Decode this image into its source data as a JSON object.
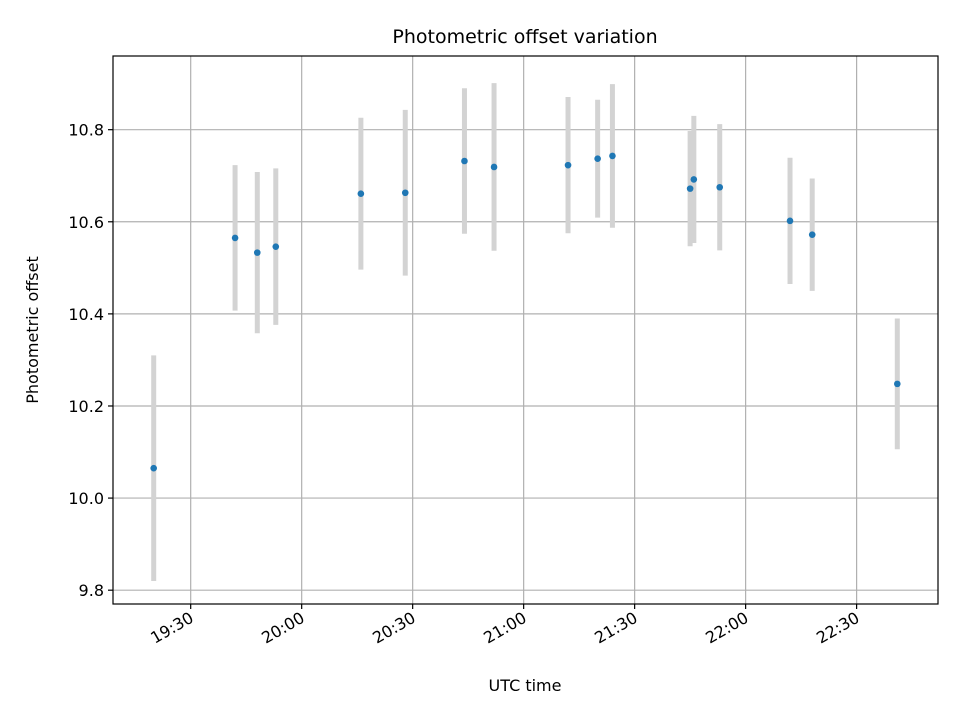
{
  "chart_data": {
    "type": "scatter",
    "title": "Photometric offset variation",
    "xlabel": "UTC time",
    "ylabel": "Photometric offset",
    "x_ticks": [
      "19:30",
      "20:00",
      "20:30",
      "21:00",
      "21:30",
      "22:00",
      "22:30"
    ],
    "y_ticks": [
      "9.8",
      "10.0",
      "10.2",
      "10.4",
      "10.6",
      "10.8"
    ],
    "xlim": [
      "19:09",
      "22:52"
    ],
    "ylim": [
      9.77,
      10.96
    ],
    "grid": true,
    "colors": {
      "point": "#1f77b4",
      "errorbar": "#d3d3d3",
      "grid": "#b0b0b0"
    },
    "series": [
      {
        "points": [
          {
            "x": "19:20",
            "y": 10.065,
            "err": 0.245
          },
          {
            "x": "19:42",
            "y": 10.565,
            "err": 0.158
          },
          {
            "x": "19:48",
            "y": 10.533,
            "err": 0.175
          },
          {
            "x": "19:53",
            "y": 10.546,
            "err": 0.17
          },
          {
            "x": "20:16",
            "y": 10.661,
            "err": 0.165
          },
          {
            "x": "20:28",
            "y": 10.663,
            "err": 0.18
          },
          {
            "x": "20:44",
            "y": 10.732,
            "err": 0.158
          },
          {
            "x": "20:52",
            "y": 10.719,
            "err": 0.182
          },
          {
            "x": "21:12",
            "y": 10.723,
            "err": 0.148
          },
          {
            "x": "21:20",
            "y": 10.737,
            "err": 0.128
          },
          {
            "x": "21:24",
            "y": 10.743,
            "err": 0.156
          },
          {
            "x": "21:45",
            "y": 10.672,
            "err": 0.125
          },
          {
            "x": "21:46",
            "y": 10.692,
            "err": 0.138
          },
          {
            "x": "21:53",
            "y": 10.675,
            "err": 0.137
          },
          {
            "x": "22:12",
            "y": 10.602,
            "err": 0.137
          },
          {
            "x": "22:18",
            "y": 10.572,
            "err": 0.122
          },
          {
            "x": "22:41",
            "y": 10.248,
            "err": 0.142
          }
        ]
      }
    ]
  }
}
